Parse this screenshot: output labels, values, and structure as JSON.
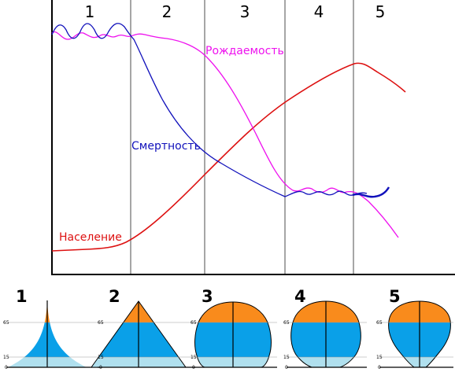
{
  "stages": [
    "1",
    "2",
    "3",
    "4",
    "5"
  ],
  "labels": {
    "birth_rate": "Рождаемость",
    "death_rate": "Смертность",
    "population": "Население"
  },
  "colors": {
    "birth_rate": "#ee11ee",
    "death_rate": "#1111bb",
    "population": "#dd1111",
    "young": "#b0e0ee",
    "working": "#0aa0e8",
    "elderly": "#f98b1c",
    "grid": "#888888"
  },
  "pyramids": {
    "numbers": [
      "1",
      "2",
      "3",
      "4",
      "5"
    ],
    "age_ticks": [
      "65",
      "15",
      "0"
    ]
  }
}
